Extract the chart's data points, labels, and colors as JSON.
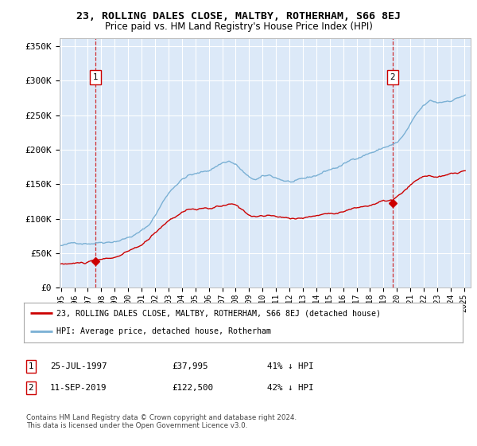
{
  "title": "23, ROLLING DALES CLOSE, MALTBY, ROTHERHAM, S66 8EJ",
  "subtitle": "Price paid vs. HM Land Registry's House Price Index (HPI)",
  "ylabel_ticks": [
    "£0",
    "£50K",
    "£100K",
    "£150K",
    "£200K",
    "£250K",
    "£300K",
    "£350K"
  ],
  "ytick_values": [
    0,
    50000,
    100000,
    150000,
    200000,
    250000,
    300000,
    350000
  ],
  "ylim": [
    0,
    362000
  ],
  "xlim_start": 1994.9,
  "xlim_end": 2025.5,
  "point1_x": 1997.56,
  "point1_y": 37995,
  "point2_x": 2019.69,
  "point2_y": 122500,
  "point1_date": "25-JUL-1997",
  "point1_price": "£37,995",
  "point1_hpi": "41% ↓ HPI",
  "point2_date": "11-SEP-2019",
  "point2_price": "£122,500",
  "point2_hpi": "42% ↓ HPI",
  "legend_line1": "23, ROLLING DALES CLOSE, MALTBY, ROTHERHAM, S66 8EJ (detached house)",
  "legend_line2": "HPI: Average price, detached house, Rotherham",
  "footer": "Contains HM Land Registry data © Crown copyright and database right 2024.\nThis data is licensed under the Open Government Licence v3.0.",
  "bg_color": "#dce9f8",
  "grid_color": "#ffffff",
  "red_line_color": "#cc0000",
  "blue_line_color": "#7ab0d4",
  "title_fontsize": 9.5,
  "subtitle_fontsize": 8.5
}
